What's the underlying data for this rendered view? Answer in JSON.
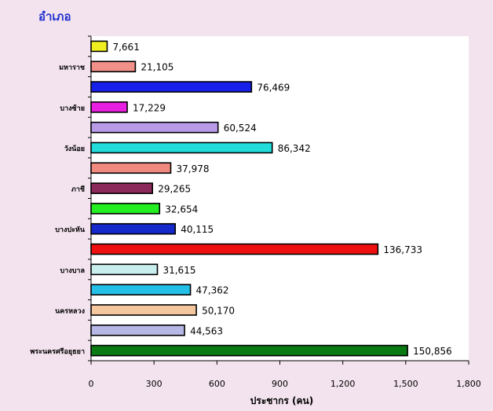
{
  "chart_data": {
    "type": "bar",
    "orientation": "horizontal",
    "title": "อำเภอ",
    "xlabel": "ประชากร (คน)",
    "x_tick_labels": [
      "0",
      "300",
      "600",
      "900",
      "1,200",
      "1,500",
      "1,800"
    ],
    "xlim": [
      0,
      180000
    ],
    "grid": false,
    "legend": "none",
    "categories": [
      "พระนครศรีอยุธยา",
      "",
      "นครหลวง",
      "",
      "บางบาล",
      "",
      "บางปะหัน",
      "",
      "ภาชี",
      "",
      "วังน้อย",
      "",
      "บางซ้าย",
      "",
      "มหาราช",
      ""
    ],
    "values": [
      150856,
      44563,
      50170,
      47362,
      31615,
      136733,
      40115,
      32654,
      29265,
      37978,
      86342,
      60524,
      17229,
      76469,
      21105,
      7661
    ],
    "value_labels": [
      "150,856",
      "44,563",
      "50,170",
      "47,362",
      "31,615",
      "136,733",
      "40,115",
      "32,654",
      "29,265",
      "37,978",
      "86,342",
      "60,524",
      "17,229",
      "76,469",
      "21,105",
      "7,661"
    ],
    "colors": [
      "#0a7a12",
      "#b7b7e6",
      "#f4c79f",
      "#24bfe6",
      "#c9eeee",
      "#ee1010",
      "#1428cc",
      "#22ee22",
      "#8a2a5a",
      "#f08a80",
      "#22dbdb",
      "#b99ae6",
      "#e81ee0",
      "#1620e8",
      "#f09088",
      "#f0f020"
    ]
  }
}
